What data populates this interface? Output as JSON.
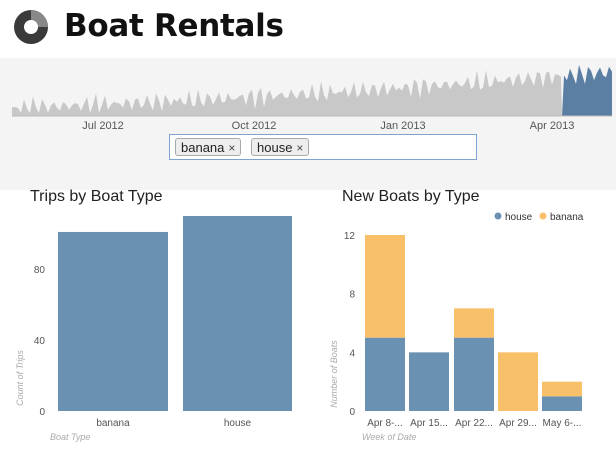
{
  "app": {
    "title": "Boat Rentals"
  },
  "timeline": {
    "ticks": [
      "Jul 2012",
      "Oct 2012",
      "Jan 2013",
      "Apr 2013"
    ],
    "colors": {
      "base": "#c8c8c8",
      "selected": "#5b7fa3"
    }
  },
  "filter": {
    "tags": [
      "banana",
      "house"
    ],
    "remove_glyph": "×"
  },
  "trips_chart": {
    "title": "Trips by Boat Type",
    "chart_data": {
      "type": "bar",
      "categories": [
        "banana",
        "house"
      ],
      "values": [
        101,
        110
      ],
      "xlabel": "Boat Type",
      "ylabel": "Count of Trips",
      "ylim": [
        0,
        110
      ],
      "yticks": [
        "0",
        "40",
        "80"
      ],
      "color": "#6a91b2"
    }
  },
  "new_boats_chart": {
    "title": "New Boats by Type",
    "legend": [
      {
        "name": "house",
        "color": "#6a91b2"
      },
      {
        "name": "banana",
        "color": "#f9c06a"
      }
    ],
    "chart_data": {
      "type": "bar",
      "stacked": true,
      "categories": [
        "Apr 8-...",
        "Apr 15...",
        "Apr 22...",
        "Apr 29...",
        "May 6-..."
      ],
      "series": [
        {
          "name": "house",
          "values": [
            5,
            4,
            5,
            0,
            1
          ]
        },
        {
          "name": "banana",
          "values": [
            7,
            0,
            2,
            4,
            1
          ]
        }
      ],
      "xlabel": "Week of Date",
      "ylabel": "Number of Boats",
      "ylim": [
        0,
        12
      ],
      "yticks": [
        "0",
        "4",
        "8",
        "12"
      ]
    }
  }
}
